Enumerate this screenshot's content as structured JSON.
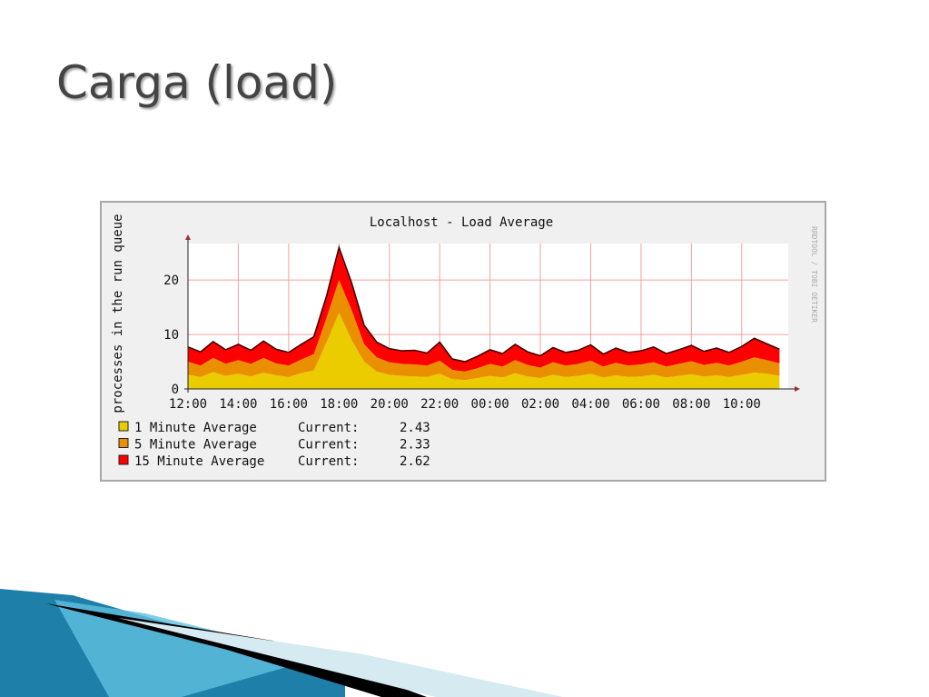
{
  "slide_title": "Carga (load)",
  "chart_data": {
    "type": "stacked-area",
    "title": "Localhost - Load Average",
    "y_label": "processes in the run queue",
    "watermark": "RRDTOOL / TOBI OETIKER",
    "x": [
      0,
      0.5,
      1,
      1.5,
      2,
      2.5,
      3,
      3.5,
      4,
      4.5,
      5,
      5.5,
      6,
      6.5,
      7,
      7.5,
      8,
      8.5,
      9,
      9.5,
      10,
      10.5,
      11,
      11.5,
      12,
      12.5,
      13,
      13.5,
      14,
      14.5,
      15,
      15.5,
      16,
      16.5,
      17,
      17.5,
      18,
      18.5,
      19,
      19.5,
      20,
      20.5,
      21,
      21.5,
      22,
      22.5,
      23,
      23.5
    ],
    "xlim": [
      0,
      24.1
    ],
    "xticks": [
      {
        "value": 0,
        "label": "12:00"
      },
      {
        "value": 2,
        "label": "14:00"
      },
      {
        "value": 4,
        "label": "16:00"
      },
      {
        "value": 6,
        "label": "18:00"
      },
      {
        "value": 8,
        "label": "20:00"
      },
      {
        "value": 10,
        "label": "22:00"
      },
      {
        "value": 12,
        "label": "00:00"
      },
      {
        "value": 14,
        "label": "02:00"
      },
      {
        "value": 16,
        "label": "04:00"
      },
      {
        "value": 18,
        "label": "06:00"
      },
      {
        "value": 20,
        "label": "08:00"
      },
      {
        "value": 22,
        "label": "10:00"
      }
    ],
    "ylim": [
      0,
      26.7
    ],
    "yticks": [
      0,
      10,
      20
    ],
    "grid": true,
    "current_label": "Current:",
    "series": [
      {
        "name": "1 Minute Average",
        "color": "#eacc00",
        "current": 2.43,
        "values": [
          2.6,
          2.2,
          3.1,
          2.4,
          2.8,
          2.3,
          3.0,
          2.5,
          2.2,
          2.9,
          3.4,
          8.5,
          14,
          9,
          5,
          3.2,
          2.6,
          2.4,
          2.3,
          2.2,
          2.8,
          1.8,
          1.6,
          2.0,
          2.4,
          2.1,
          2.9,
          2.3,
          2.0,
          2.6,
          2.2,
          2.4,
          2.8,
          2.1,
          2.5,
          2.2,
          2.3,
          2.6,
          2.1,
          2.4,
          2.7,
          2.3,
          2.5,
          2.2,
          2.6,
          3.0,
          2.8,
          2.4
        ]
      },
      {
        "name": "5 Minute Average",
        "color": "#ea8f00",
        "current": 2.33,
        "values": [
          2.4,
          2.1,
          2.6,
          2.2,
          2.5,
          2.3,
          2.7,
          2.2,
          2.1,
          2.5,
          3.0,
          4.5,
          6,
          5.5,
          3.2,
          2.6,
          2.3,
          2.2,
          2.2,
          2.1,
          2.4,
          1.7,
          1.6,
          1.8,
          2.2,
          2.0,
          2.4,
          2.1,
          1.9,
          2.3,
          2.1,
          2.2,
          2.4,
          2.0,
          2.3,
          2.1,
          2.2,
          2.3,
          2.0,
          2.2,
          2.4,
          2.1,
          2.3,
          2.1,
          2.4,
          2.8,
          2.5,
          2.3
        ]
      },
      {
        "name": "15 Minute Average",
        "color": "#ff0000",
        "current": 2.62,
        "values": [
          2.7,
          2.5,
          3.0,
          2.6,
          2.9,
          2.5,
          3.1,
          2.6,
          2.4,
          2.8,
          3.2,
          4.0,
          6,
          5,
          3.5,
          2.8,
          2.5,
          2.4,
          2.6,
          2.3,
          3.4,
          2.0,
          1.8,
          2.2,
          2.6,
          2.4,
          2.9,
          2.4,
          2.2,
          2.7,
          2.4,
          2.5,
          2.9,
          2.3,
          2.7,
          2.4,
          2.5,
          2.8,
          2.4,
          2.6,
          2.9,
          2.5,
          2.7,
          2.4,
          2.8,
          3.5,
          3.0,
          2.6
        ]
      }
    ]
  }
}
